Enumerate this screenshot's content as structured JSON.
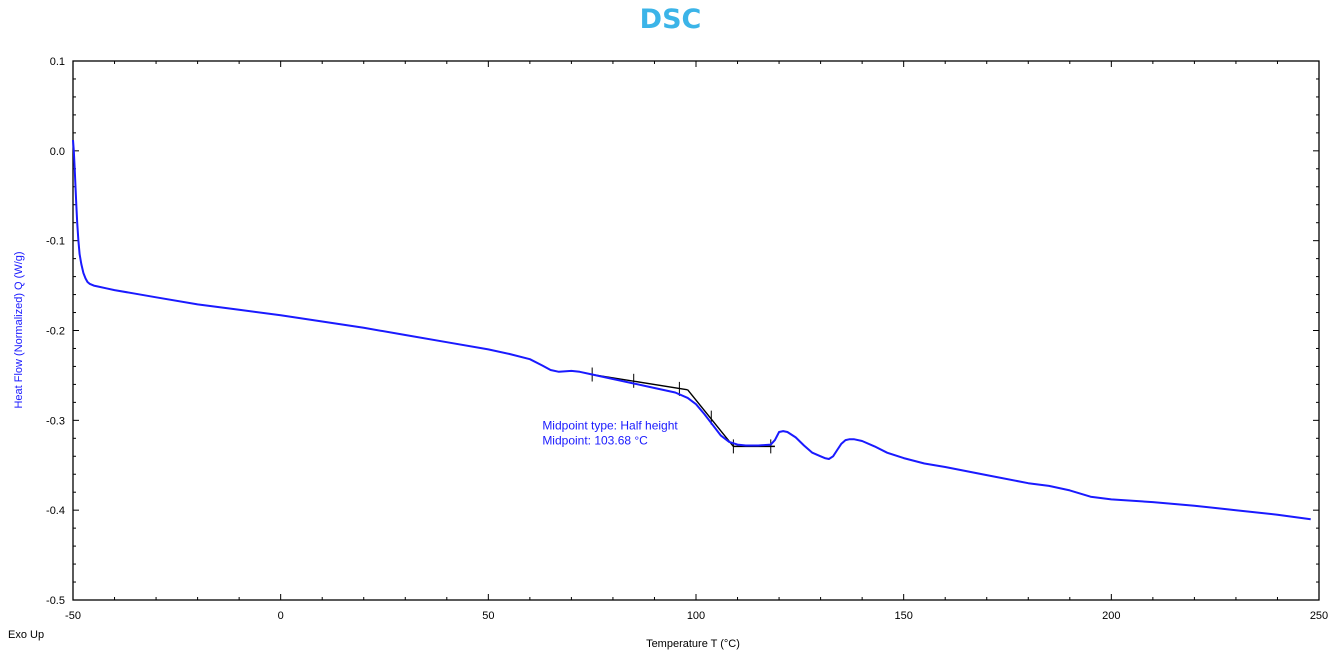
{
  "colors": {
    "title": "#3bb4e8",
    "curve": "#1a1aff",
    "axis_label": "#1a1aff",
    "annotation": "#1a1aff",
    "fit": "#000000",
    "axis": "#000000"
  },
  "chart_data": {
    "type": "line",
    "title": "DSC",
    "xlabel": "Temperature  T (°C)",
    "ylabel": "Heat Flow (Normalized)  Q  (W/g)",
    "corner_label": "Exo Up",
    "xlim": [
      -50,
      250
    ],
    "ylim": [
      -0.5,
      0.1
    ],
    "x_ticks": [
      -50,
      0,
      50,
      100,
      150,
      200,
      250
    ],
    "x_tick_labels": [
      "-50",
      "0",
      "50",
      "100",
      "150",
      "200",
      "250"
    ],
    "y_ticks": [
      0.1,
      0.0,
      -0.1,
      -0.2,
      -0.3,
      -0.4,
      -0.5
    ],
    "y_tick_labels": [
      "0.1",
      "0.0",
      "-0.1",
      "-0.2",
      "-0.3",
      "-0.4",
      "-0.5"
    ],
    "grid": false,
    "annotation": {
      "lines": [
        "Midpoint type: Half height",
        "Midpoint: 103.68 °C"
      ],
      "x": 63,
      "y": -0.31
    },
    "series": [
      {
        "x": [
          -50,
          -49.8,
          -49.6,
          -49.4,
          -49.2,
          -49,
          -48.7,
          -48.4,
          -48,
          -47.5,
          -47,
          -46.5,
          -46,
          -45.5,
          -45,
          -44,
          -42,
          -40,
          -35,
          -30,
          -20,
          -10,
          0,
          10,
          20,
          30,
          40,
          50,
          55,
          60,
          63,
          65,
          67,
          70,
          72,
          75,
          80,
          85,
          90,
          95,
          98,
          100,
          102,
          104,
          106,
          108,
          110,
          112,
          115,
          118,
          119,
          120,
          121,
          122,
          124,
          126,
          128,
          130,
          131,
          132,
          133,
          134,
          135,
          136,
          137,
          138,
          140,
          143,
          146,
          150,
          155,
          160,
          170,
          180,
          185,
          190,
          195,
          200,
          210,
          220,
          230,
          240,
          248
        ],
        "y": [
          0.012,
          0.0,
          -0.02,
          -0.04,
          -0.06,
          -0.08,
          -0.1,
          -0.115,
          -0.126,
          -0.136,
          -0.142,
          -0.146,
          -0.148,
          -0.149,
          -0.15,
          -0.151,
          -0.153,
          -0.155,
          -0.159,
          -0.163,
          -0.171,
          -0.177,
          -0.183,
          -0.19,
          -0.197,
          -0.205,
          -0.213,
          -0.221,
          -0.226,
          -0.232,
          -0.239,
          -0.244,
          -0.246,
          -0.245,
          -0.246,
          -0.249,
          -0.254,
          -0.259,
          -0.264,
          -0.269,
          -0.275,
          -0.282,
          -0.293,
          -0.305,
          -0.317,
          -0.324,
          -0.327,
          -0.328,
          -0.328,
          -0.327,
          -0.322,
          -0.313,
          -0.312,
          -0.313,
          -0.319,
          -0.328,
          -0.336,
          -0.34,
          -0.342,
          -0.343,
          -0.34,
          -0.333,
          -0.326,
          -0.322,
          -0.321,
          -0.321,
          -0.323,
          -0.329,
          -0.336,
          -0.342,
          -0.348,
          -0.352,
          -0.361,
          -0.37,
          -0.373,
          -0.378,
          -0.385,
          -0.388,
          -0.391,
          -0.395,
          -0.4,
          -0.405,
          -0.41
        ]
      }
    ],
    "fit_lines": [
      {
        "x": [
          75,
          98
        ],
        "y": [
          -0.249,
          -0.266
        ]
      },
      {
        "x": [
          98,
          109
        ],
        "y": [
          -0.266,
          -0.329
        ]
      },
      {
        "x": [
          109,
          119
        ],
        "y": [
          -0.329,
          -0.329
        ]
      }
    ],
    "fit_markers": {
      "x": [
        75,
        85,
        96,
        103.68,
        109,
        118
      ],
      "y": [
        -0.249,
        -0.256,
        -0.265,
        -0.297,
        -0.329,
        -0.329
      ]
    }
  }
}
